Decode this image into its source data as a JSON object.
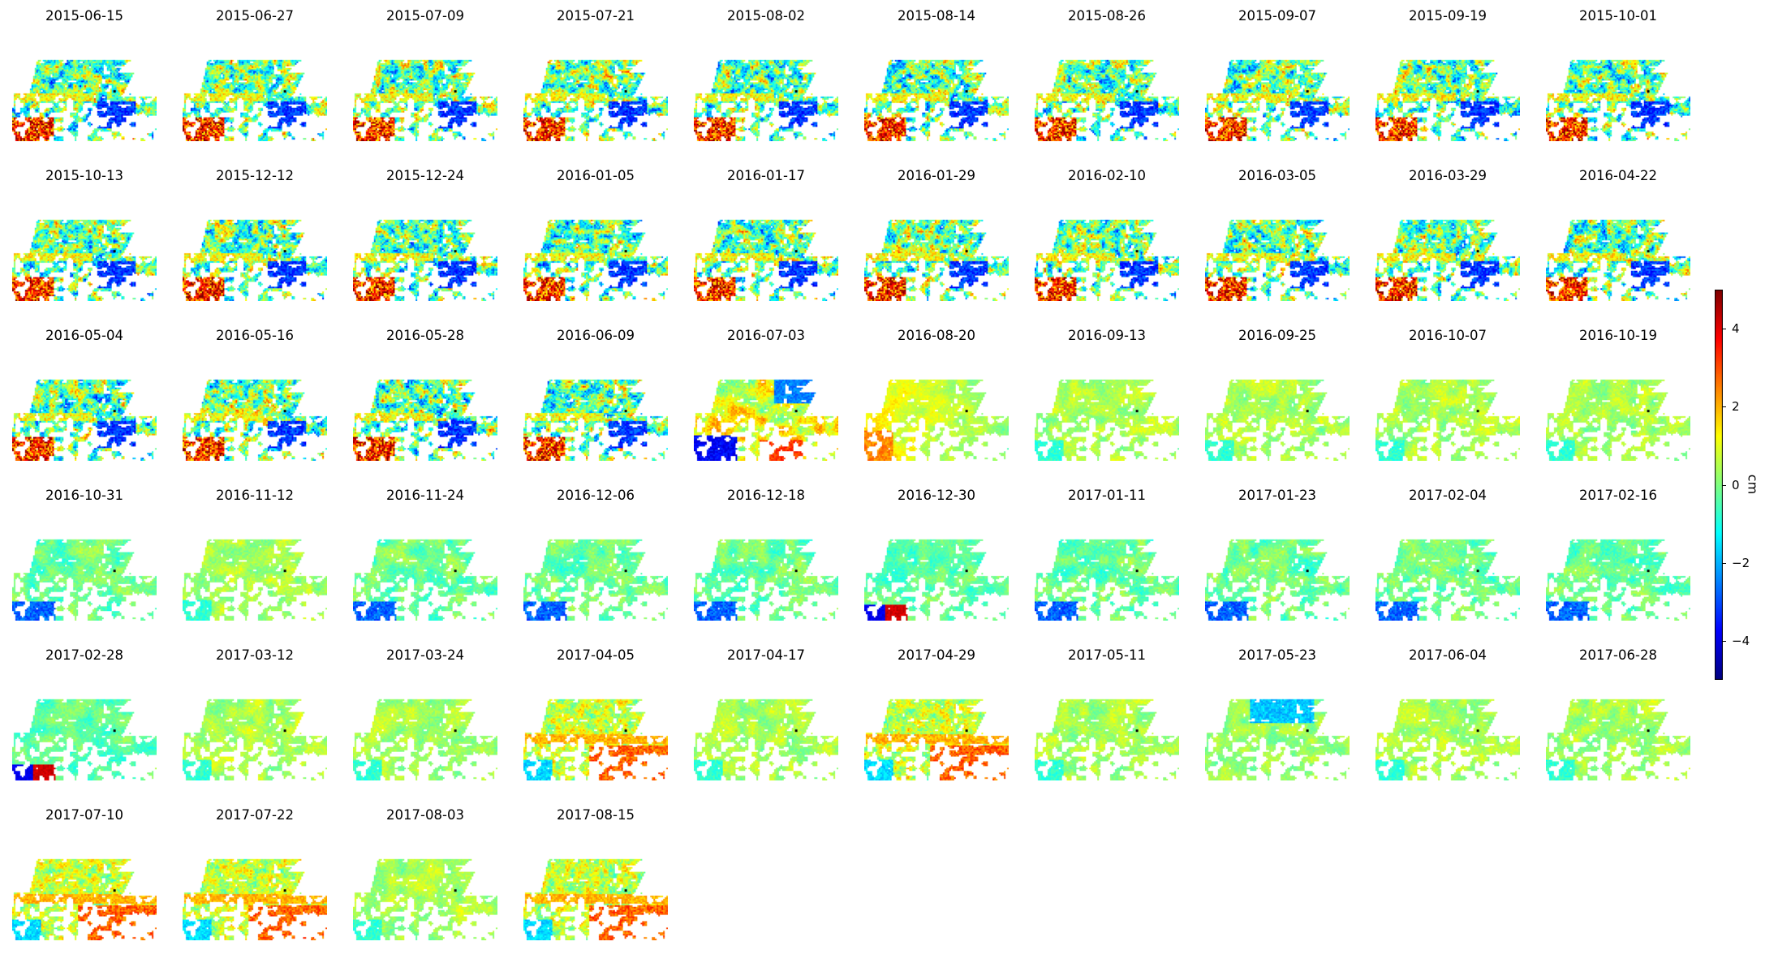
{
  "chart_data": {
    "type": "heatmap",
    "title": "",
    "colormap": "jet",
    "colorbar": {
      "label": "cm",
      "vmin": -5,
      "vmax": 5,
      "ticks": [
        {
          "value": 4,
          "label": "4"
        },
        {
          "value": 2,
          "label": "2"
        },
        {
          "value": 0,
          "label": "0"
        },
        {
          "value": -2,
          "label": "−2"
        },
        {
          "value": -4,
          "label": "−4"
        }
      ]
    },
    "panels": [
      {
        "date": "2015-06-15",
        "mode": "noisy"
      },
      {
        "date": "2015-06-27",
        "mode": "noisy"
      },
      {
        "date": "2015-07-09",
        "mode": "noisy"
      },
      {
        "date": "2015-07-21",
        "mode": "noisy"
      },
      {
        "date": "2015-08-02",
        "mode": "noisy"
      },
      {
        "date": "2015-08-14",
        "mode": "noisy"
      },
      {
        "date": "2015-08-26",
        "mode": "noisy"
      },
      {
        "date": "2015-09-07",
        "mode": "noisy"
      },
      {
        "date": "2015-09-19",
        "mode": "noisy"
      },
      {
        "date": "2015-10-01",
        "mode": "noisy"
      },
      {
        "date": "2015-10-13",
        "mode": "noisy"
      },
      {
        "date": "2015-12-12",
        "mode": "noisy"
      },
      {
        "date": "2015-12-24",
        "mode": "noisy"
      },
      {
        "date": "2016-01-05",
        "mode": "noisy"
      },
      {
        "date": "2016-01-17",
        "mode": "noisy"
      },
      {
        "date": "2016-01-29",
        "mode": "noisy"
      },
      {
        "date": "2016-02-10",
        "mode": "noisy"
      },
      {
        "date": "2016-03-05",
        "mode": "noisy"
      },
      {
        "date": "2016-03-29",
        "mode": "noisy"
      },
      {
        "date": "2016-04-22",
        "mode": "noisy"
      },
      {
        "date": "2016-05-04",
        "mode": "noisy"
      },
      {
        "date": "2016-05-16",
        "mode": "noisy"
      },
      {
        "date": "2016-05-28",
        "mode": "noisy"
      },
      {
        "date": "2016-06-09",
        "mode": "noisy"
      },
      {
        "date": "2016-07-03",
        "mode": "transition"
      },
      {
        "date": "2016-08-20",
        "mode": "warm"
      },
      {
        "date": "2016-09-13",
        "mode": "calm"
      },
      {
        "date": "2016-09-25",
        "mode": "calm"
      },
      {
        "date": "2016-10-07",
        "mode": "calm"
      },
      {
        "date": "2016-10-19",
        "mode": "calm"
      },
      {
        "date": "2016-10-31",
        "mode": "cool"
      },
      {
        "date": "2016-11-12",
        "mode": "calm"
      },
      {
        "date": "2016-11-24",
        "mode": "cool"
      },
      {
        "date": "2016-12-06",
        "mode": "cool"
      },
      {
        "date": "2016-12-18",
        "mode": "cool"
      },
      {
        "date": "2016-12-30",
        "mode": "coolred"
      },
      {
        "date": "2017-01-11",
        "mode": "cool"
      },
      {
        "date": "2017-01-23",
        "mode": "cool"
      },
      {
        "date": "2017-02-04",
        "mode": "cool"
      },
      {
        "date": "2017-02-16",
        "mode": "cool"
      },
      {
        "date": "2017-02-28",
        "mode": "coolred"
      },
      {
        "date": "2017-03-12",
        "mode": "calm"
      },
      {
        "date": "2017-03-24",
        "mode": "calm"
      },
      {
        "date": "2017-04-05",
        "mode": "warmnoisy"
      },
      {
        "date": "2017-04-17",
        "mode": "calm"
      },
      {
        "date": "2017-04-29",
        "mode": "warmnoisy"
      },
      {
        "date": "2017-05-11",
        "mode": "calm"
      },
      {
        "date": "2017-05-23",
        "mode": "bluetop"
      },
      {
        "date": "2017-06-04",
        "mode": "calm"
      },
      {
        "date": "2017-06-28",
        "mode": "calm"
      },
      {
        "date": "2017-07-10",
        "mode": "warmnoisy"
      },
      {
        "date": "2017-07-22",
        "mode": "warmnoisy"
      },
      {
        "date": "2017-08-03",
        "mode": "calm"
      },
      {
        "date": "2017-08-15",
        "mode": "warmnoisy"
      }
    ]
  }
}
